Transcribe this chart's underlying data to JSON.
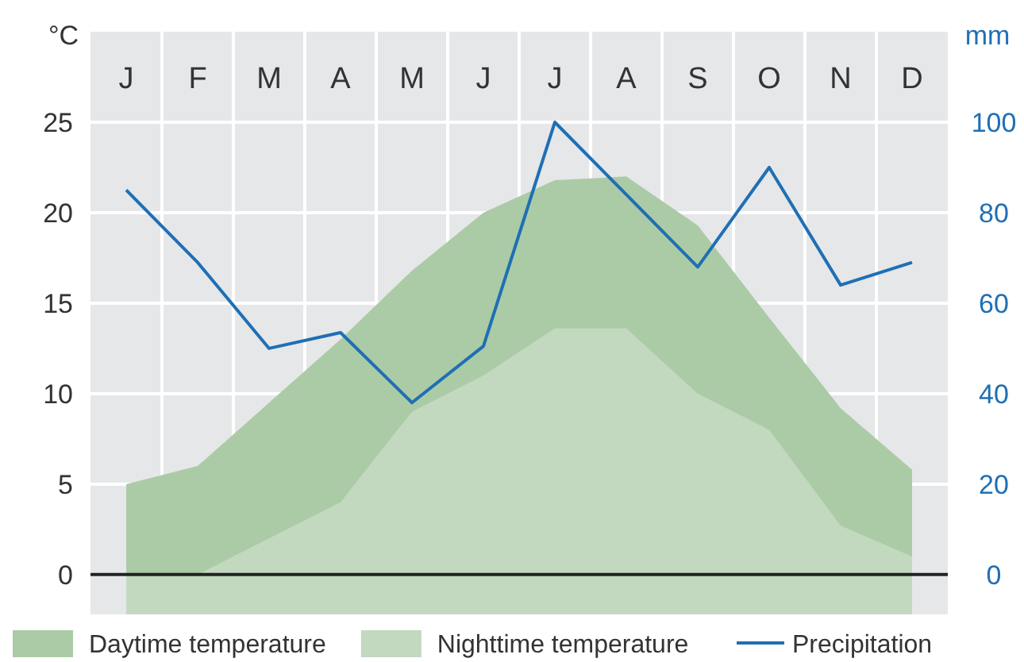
{
  "chart_data": {
    "type": "area",
    "ylabel": "°C",
    "y2label": "mm",
    "categories": [
      "J",
      "F",
      "M",
      "A",
      "M",
      "J",
      "J",
      "A",
      "S",
      "O",
      "N",
      "D"
    ],
    "series": [
      {
        "name": "Daytime temperature",
        "color": "#abcba6",
        "values": [
          5,
          6,
          9.5,
          13,
          16.8,
          20,
          21.8,
          22,
          19.3,
          14.2,
          9.2,
          5.8
        ]
      },
      {
        "name": "Nighttime temperature",
        "color": "#c2d9bf",
        "values": [
          0,
          0,
          2,
          4,
          9,
          11,
          13.6,
          13.6,
          10,
          8,
          2.7,
          1
        ]
      },
      {
        "name": "Precipitation",
        "type": "line",
        "axis": "y2",
        "color": "#1f6fb5",
        "values": [
          85,
          69,
          50,
          53.5,
          38,
          50.5,
          100,
          84,
          68,
          90,
          64,
          69
        ]
      }
    ],
    "ylim": [
      -2.2,
      30
    ],
    "yticks": [
      0,
      5,
      10,
      15,
      20,
      25
    ],
    "y2lim": [
      -8.8,
      120
    ],
    "y2ticks": [
      0,
      20,
      40,
      60,
      80,
      100
    ],
    "grid": true,
    "legend": "bottom"
  }
}
